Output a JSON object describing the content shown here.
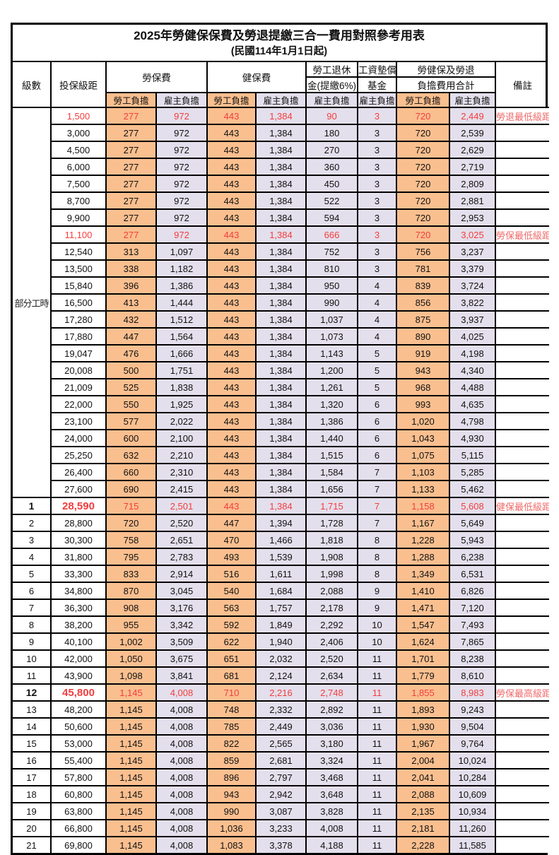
{
  "title": "2025年勞健保保費及勞退提繳三合一費用對照參考用表",
  "subtitle": "(民國114年1月1日起)",
  "header": {
    "level": "級數",
    "bracket": "投保級距",
    "labor_insurance": "勞保費",
    "health_insurance": "健保費",
    "pension_line1": "勞工退休",
    "pension_line2": "金(提繳6%)",
    "wage_fund_line1": "工資墊償",
    "wage_fund_line2": "基金",
    "total_line1": "勞健保及勞退",
    "total_line2": "負擔費用合計",
    "remark": "備註",
    "employee": "勞工負擔",
    "employer": "雇主負擔"
  },
  "part_time_label": "部分工時",
  "part_time_span": 23,
  "colors": {
    "employee_bg": "#FABF8F",
    "employer_bg": "#E4DFEC",
    "highlight_text": "#f23d3d",
    "remark_text": "#f06a6a",
    "border": "#000000"
  },
  "rows": [
    {
      "level": "",
      "bracket": "1,500",
      "values": [
        "277",
        "972",
        "443",
        "1,384",
        "90",
        "3",
        "720",
        "2,449"
      ],
      "remark": "勞退最低級距",
      "red": true,
      "bold": false
    },
    {
      "level": "",
      "bracket": "3,000",
      "values": [
        "277",
        "972",
        "443",
        "1,384",
        "180",
        "3",
        "720",
        "2,539"
      ],
      "remark": "",
      "red": false,
      "bold": false
    },
    {
      "level": "",
      "bracket": "4,500",
      "values": [
        "277",
        "972",
        "443",
        "1,384",
        "270",
        "3",
        "720",
        "2,629"
      ],
      "remark": "",
      "red": false,
      "bold": false
    },
    {
      "level": "",
      "bracket": "6,000",
      "values": [
        "277",
        "972",
        "443",
        "1,384",
        "360",
        "3",
        "720",
        "2,719"
      ],
      "remark": "",
      "red": false,
      "bold": false
    },
    {
      "level": "",
      "bracket": "7,500",
      "values": [
        "277",
        "972",
        "443",
        "1,384",
        "450",
        "3",
        "720",
        "2,809"
      ],
      "remark": "",
      "red": false,
      "bold": false
    },
    {
      "level": "",
      "bracket": "8,700",
      "values": [
        "277",
        "972",
        "443",
        "1,384",
        "522",
        "3",
        "720",
        "2,881"
      ],
      "remark": "",
      "red": false,
      "bold": false
    },
    {
      "level": "",
      "bracket": "9,900",
      "values": [
        "277",
        "972",
        "443",
        "1,384",
        "594",
        "3",
        "720",
        "2,953"
      ],
      "remark": "",
      "red": false,
      "bold": false
    },
    {
      "level": "",
      "bracket": "11,100",
      "values": [
        "277",
        "972",
        "443",
        "1,384",
        "666",
        "3",
        "720",
        "3,025"
      ],
      "remark": "勞保最低級距",
      "red": true,
      "bold": false
    },
    {
      "level": "",
      "bracket": "12,540",
      "values": [
        "313",
        "1,097",
        "443",
        "1,384",
        "752",
        "3",
        "756",
        "3,237"
      ],
      "remark": "",
      "red": false,
      "bold": false
    },
    {
      "level": "",
      "bracket": "13,500",
      "values": [
        "338",
        "1,182",
        "443",
        "1,384",
        "810",
        "3",
        "781",
        "3,379"
      ],
      "remark": "",
      "red": false,
      "bold": false
    },
    {
      "level": "",
      "bracket": "15,840",
      "values": [
        "396",
        "1,386",
        "443",
        "1,384",
        "950",
        "4",
        "839",
        "3,724"
      ],
      "remark": "",
      "red": false,
      "bold": false
    },
    {
      "level": "",
      "bracket": "16,500",
      "values": [
        "413",
        "1,444",
        "443",
        "1,384",
        "990",
        "4",
        "856",
        "3,822"
      ],
      "remark": "",
      "red": false,
      "bold": false
    },
    {
      "level": "",
      "bracket": "17,280",
      "values": [
        "432",
        "1,512",
        "443",
        "1,384",
        "1,037",
        "4",
        "875",
        "3,937"
      ],
      "remark": "",
      "red": false,
      "bold": false
    },
    {
      "level": "",
      "bracket": "17,880",
      "values": [
        "447",
        "1,564",
        "443",
        "1,384",
        "1,073",
        "4",
        "890",
        "4,025"
      ],
      "remark": "",
      "red": false,
      "bold": false
    },
    {
      "level": "",
      "bracket": "19,047",
      "values": [
        "476",
        "1,666",
        "443",
        "1,384",
        "1,143",
        "5",
        "919",
        "4,198"
      ],
      "remark": "",
      "red": false,
      "bold": false
    },
    {
      "level": "",
      "bracket": "20,008",
      "values": [
        "500",
        "1,751",
        "443",
        "1,384",
        "1,200",
        "5",
        "943",
        "4,340"
      ],
      "remark": "",
      "red": false,
      "bold": false
    },
    {
      "level": "",
      "bracket": "21,009",
      "values": [
        "525",
        "1,838",
        "443",
        "1,384",
        "1,261",
        "5",
        "968",
        "4,488"
      ],
      "remark": "",
      "red": false,
      "bold": false
    },
    {
      "level": "",
      "bracket": "22,000",
      "values": [
        "550",
        "1,925",
        "443",
        "1,384",
        "1,320",
        "6",
        "993",
        "4,635"
      ],
      "remark": "",
      "red": false,
      "bold": false
    },
    {
      "level": "",
      "bracket": "23,100",
      "values": [
        "577",
        "2,022",
        "443",
        "1,384",
        "1,386",
        "6",
        "1,020",
        "4,798"
      ],
      "remark": "",
      "red": false,
      "bold": false
    },
    {
      "level": "",
      "bracket": "24,000",
      "values": [
        "600",
        "2,100",
        "443",
        "1,384",
        "1,440",
        "6",
        "1,043",
        "4,930"
      ],
      "remark": "",
      "red": false,
      "bold": false
    },
    {
      "level": "",
      "bracket": "25,250",
      "values": [
        "632",
        "2,210",
        "443",
        "1,384",
        "1,515",
        "6",
        "1,075",
        "5,115"
      ],
      "remark": "",
      "red": false,
      "bold": false
    },
    {
      "level": "",
      "bracket": "26,400",
      "values": [
        "660",
        "2,310",
        "443",
        "1,384",
        "1,584",
        "7",
        "1,103",
        "5,285"
      ],
      "remark": "",
      "red": false,
      "bold": false
    },
    {
      "level": "",
      "bracket": "27,600",
      "values": [
        "690",
        "2,415",
        "443",
        "1,384",
        "1,656",
        "7",
        "1,133",
        "5,462"
      ],
      "remark": "",
      "red": false,
      "bold": false
    },
    {
      "level": "1",
      "bracket": "28,590",
      "values": [
        "715",
        "2,501",
        "443",
        "1,384",
        "1,715",
        "7",
        "1,158",
        "5,608"
      ],
      "remark": "健保最低級距",
      "red": true,
      "bold": true
    },
    {
      "level": "2",
      "bracket": "28,800",
      "values": [
        "720",
        "2,520",
        "447",
        "1,394",
        "1,728",
        "7",
        "1,167",
        "5,649"
      ],
      "remark": "",
      "red": false,
      "bold": false
    },
    {
      "level": "3",
      "bracket": "30,300",
      "values": [
        "758",
        "2,651",
        "470",
        "1,466",
        "1,818",
        "8",
        "1,228",
        "5,943"
      ],
      "remark": "",
      "red": false,
      "bold": false
    },
    {
      "level": "4",
      "bracket": "31,800",
      "values": [
        "795",
        "2,783",
        "493",
        "1,539",
        "1,908",
        "8",
        "1,288",
        "6,238"
      ],
      "remark": "",
      "red": false,
      "bold": false
    },
    {
      "level": "5",
      "bracket": "33,300",
      "values": [
        "833",
        "2,914",
        "516",
        "1,611",
        "1,998",
        "8",
        "1,349",
        "6,531"
      ],
      "remark": "",
      "red": false,
      "bold": false
    },
    {
      "level": "6",
      "bracket": "34,800",
      "values": [
        "870",
        "3,045",
        "540",
        "1,684",
        "2,088",
        "9",
        "1,410",
        "6,826"
      ],
      "remark": "",
      "red": false,
      "bold": false
    },
    {
      "level": "7",
      "bracket": "36,300",
      "values": [
        "908",
        "3,176",
        "563",
        "1,757",
        "2,178",
        "9",
        "1,471",
        "7,120"
      ],
      "remark": "",
      "red": false,
      "bold": false
    },
    {
      "level": "8",
      "bracket": "38,200",
      "values": [
        "955",
        "3,342",
        "592",
        "1,849",
        "2,292",
        "10",
        "1,547",
        "7,493"
      ],
      "remark": "",
      "red": false,
      "bold": false
    },
    {
      "level": "9",
      "bracket": "40,100",
      "values": [
        "1,002",
        "3,509",
        "622",
        "1,940",
        "2,406",
        "10",
        "1,624",
        "7,865"
      ],
      "remark": "",
      "red": false,
      "bold": false
    },
    {
      "level": "10",
      "bracket": "42,000",
      "values": [
        "1,050",
        "3,675",
        "651",
        "2,032",
        "2,520",
        "11",
        "1,701",
        "8,238"
      ],
      "remark": "",
      "red": false,
      "bold": false
    },
    {
      "level": "11",
      "bracket": "43,900",
      "values": [
        "1,098",
        "3,841",
        "681",
        "2,124",
        "2,634",
        "11",
        "1,779",
        "8,610"
      ],
      "remark": "",
      "red": false,
      "bold": false
    },
    {
      "level": "12",
      "bracket": "45,800",
      "values": [
        "1,145",
        "4,008",
        "710",
        "2,216",
        "2,748",
        "11",
        "1,855",
        "8,983"
      ],
      "remark": "勞保最高級距",
      "red": true,
      "bold": true
    },
    {
      "level": "13",
      "bracket": "48,200",
      "values": [
        "1,145",
        "4,008",
        "748",
        "2,332",
        "2,892",
        "11",
        "1,893",
        "9,243"
      ],
      "remark": "",
      "red": false,
      "bold": false
    },
    {
      "level": "14",
      "bracket": "50,600",
      "values": [
        "1,145",
        "4,008",
        "785",
        "2,449",
        "3,036",
        "11",
        "1,930",
        "9,504"
      ],
      "remark": "",
      "red": false,
      "bold": false
    },
    {
      "level": "15",
      "bracket": "53,000",
      "values": [
        "1,145",
        "4,008",
        "822",
        "2,565",
        "3,180",
        "11",
        "1,967",
        "9,764"
      ],
      "remark": "",
      "red": false,
      "bold": false
    },
    {
      "level": "16",
      "bracket": "55,400",
      "values": [
        "1,145",
        "4,008",
        "859",
        "2,681",
        "3,324",
        "11",
        "2,004",
        "10,024"
      ],
      "remark": "",
      "red": false,
      "bold": false
    },
    {
      "level": "17",
      "bracket": "57,800",
      "values": [
        "1,145",
        "4,008",
        "896",
        "2,797",
        "3,468",
        "11",
        "2,041",
        "10,284"
      ],
      "remark": "",
      "red": false,
      "bold": false
    },
    {
      "level": "18",
      "bracket": "60,800",
      "values": [
        "1,145",
        "4,008",
        "943",
        "2,942",
        "3,648",
        "11",
        "2,088",
        "10,609"
      ],
      "remark": "",
      "red": false,
      "bold": false
    },
    {
      "level": "19",
      "bracket": "63,800",
      "values": [
        "1,145",
        "4,008",
        "990",
        "3,087",
        "3,828",
        "11",
        "2,135",
        "10,934"
      ],
      "remark": "",
      "red": false,
      "bold": false
    },
    {
      "level": "20",
      "bracket": "66,800",
      "values": [
        "1,145",
        "4,008",
        "1,036",
        "3,233",
        "4,008",
        "11",
        "2,181",
        "11,260"
      ],
      "remark": "",
      "red": false,
      "bold": false
    },
    {
      "level": "21",
      "bracket": "69,800",
      "values": [
        "1,145",
        "4,008",
        "1,083",
        "3,378",
        "4,188",
        "11",
        "2,228",
        "11,585"
      ],
      "remark": "",
      "red": false,
      "bold": false
    }
  ]
}
